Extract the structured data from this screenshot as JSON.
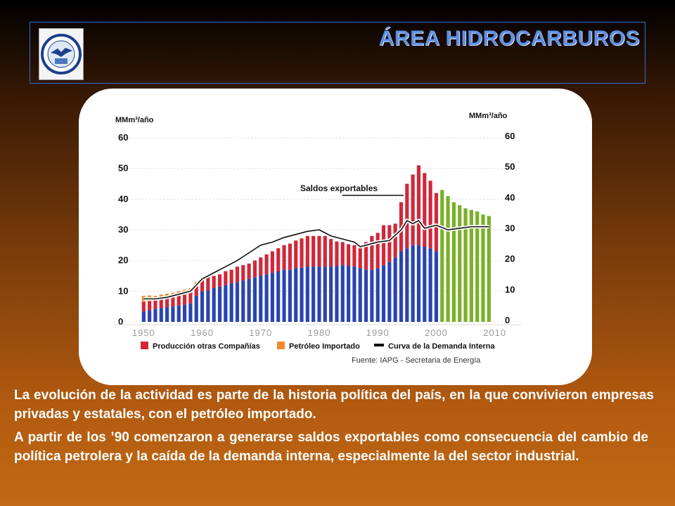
{
  "header": {
    "title": "ÁREA HIDROCARBUROS",
    "logo_text": "UNIVERSIDAD NACIONAL DE CUYO · MENDOZA ARGENTINA"
  },
  "chart_data": {
    "type": "bar",
    "ylabel_left": "MMm³/año",
    "ylabel_right": "MMm³/año",
    "yticks": [
      0,
      10,
      20,
      30,
      40,
      50,
      60
    ],
    "ylim": [
      0,
      60
    ],
    "xticks": [
      1950,
      1960,
      1970,
      1980,
      1990,
      2000,
      2010
    ],
    "xlim": [
      1949,
      2011
    ],
    "x": [
      1950,
      1951,
      1952,
      1953,
      1954,
      1955,
      1956,
      1957,
      1958,
      1959,
      1960,
      1961,
      1962,
      1963,
      1964,
      1965,
      1966,
      1967,
      1968,
      1969,
      1970,
      1971,
      1972,
      1973,
      1974,
      1975,
      1976,
      1977,
      1978,
      1979,
      1980,
      1981,
      1982,
      1983,
      1984,
      1985,
      1986,
      1987,
      1988,
      1989,
      1990,
      1991,
      1992,
      1993,
      1994,
      1995,
      1996,
      1997,
      1998,
      1999,
      2000,
      2001,
      2002,
      2003,
      2004,
      2005,
      2006,
      2007,
      2008,
      2009
    ],
    "series": [
      {
        "name": "",
        "values": [
          3.5,
          3.8,
          4.2,
          4.5,
          4.7,
          5.0,
          5.3,
          5.6,
          6.0,
          8.5,
          10.0,
          10.2,
          11.0,
          11.5,
          12.0,
          12.5,
          13.0,
          13.5,
          14.0,
          14.5,
          15.0,
          15.5,
          16.0,
          16.5,
          17.0,
          17.0,
          17.5,
          17.7,
          18.0,
          18.0,
          18.0,
          18.0,
          18.0,
          18.2,
          18.5,
          18.3,
          18.0,
          17.5,
          17.0,
          17.0,
          17.5,
          18.5,
          19.5,
          21.0,
          23.0,
          24.0,
          25.0,
          25.0,
          24.5,
          24.0,
          23.0,
          0,
          0,
          0,
          0,
          0,
          0,
          0,
          0,
          0
        ]
      },
      {
        "name": "Producción otras Compañías",
        "values": [
          3.0,
          3.0,
          2.8,
          2.9,
          3.0,
          3.0,
          3.2,
          3.3,
          3.5,
          3.5,
          4.0,
          4.5,
          4.0,
          4.0,
          4.5,
          4.5,
          5.0,
          5.0,
          5.0,
          5.5,
          6.0,
          6.5,
          7.0,
          7.5,
          8.0,
          8.5,
          9.0,
          9.5,
          10.0,
          10.0,
          10.0,
          10.0,
          9.0,
          8.0,
          7.5,
          7.0,
          7.0,
          7.5,
          9.0,
          11.0,
          11.5,
          13.0,
          12.0,
          11.0,
          16.0,
          21.0,
          23.0,
          26.0,
          24.0,
          22.0,
          19.0,
          0,
          0,
          0,
          0,
          0,
          0,
          0,
          0,
          0
        ]
      },
      {
        "name": "Petróleo Importado",
        "values": [
          2.0,
          1.8,
          1.5,
          1.5,
          1.5,
          1.5,
          1.5,
          1.5,
          1.5,
          1.0,
          0.5,
          0,
          0,
          0,
          0,
          0,
          0,
          0,
          0,
          0,
          0,
          0,
          0,
          0,
          0,
          0,
          0,
          0,
          0,
          0,
          0,
          0,
          0,
          0,
          0,
          0,
          0,
          0,
          0,
          0,
          0,
          0,
          0,
          0,
          0,
          0,
          0,
          0,
          0,
          0,
          0,
          0,
          0,
          0,
          0,
          0,
          0,
          0,
          0,
          0
        ]
      },
      {
        "name": "",
        "values": [
          0,
          0,
          0,
          0,
          0,
          0,
          0,
          0,
          0,
          0,
          0,
          0,
          0,
          0,
          0,
          0,
          0,
          0,
          0,
          0,
          0,
          0,
          0,
          0,
          0,
          0,
          0,
          0,
          0,
          0,
          0,
          0,
          0,
          0,
          0,
          0,
          0,
          0,
          0,
          0,
          0,
          0,
          0,
          0,
          0,
          0,
          0,
          0,
          0,
          0,
          0,
          43.0,
          41.0,
          39.0,
          38.0,
          37.0,
          36.5,
          36.0,
          35.0,
          34.5
        ]
      }
    ],
    "demand_line": {
      "name": "Curva de la Demanda Interna",
      "x": [
        1950,
        1952,
        1954,
        1956,
        1958,
        1960,
        1962,
        1964,
        1966,
        1968,
        1970,
        1972,
        1974,
        1976,
        1978,
        1980,
        1982,
        1984,
        1986,
        1987,
        1988,
        1990,
        1992,
        1994,
        1995,
        1996,
        1997,
        1998,
        2000,
        2002,
        2004,
        2006,
        2008,
        2009
      ],
      "y": [
        7.5,
        7.5,
        8.0,
        9.0,
        10.0,
        14.0,
        16.0,
        18.0,
        20.0,
        22.5,
        25.0,
        26.0,
        27.5,
        28.5,
        29.5,
        30.0,
        28.0,
        27.0,
        26.0,
        24.5,
        25.0,
        26.0,
        26.5,
        30.0,
        33.0,
        32.0,
        33.0,
        30.5,
        31.5,
        30.0,
        30.5,
        31.0,
        31.0,
        31.0
      ]
    },
    "annotation": "Saldos exportables",
    "legend": [
      {
        "label": "Producción otras Compañías",
        "color": "#d0283a"
      },
      {
        "label": "Petróleo Importado",
        "color": "#f08a28"
      },
      {
        "label": "Curva de la Demanda Interna",
        "color": "#111111"
      }
    ],
    "source": "Fuente: IAPG - Secretaria de Energía",
    "colors": {
      "ypf": "#2a45b0",
      "others": "#d0283a",
      "imported": "#f08a28",
      "projection": "#7ab028"
    }
  },
  "paragraphs": [
    "La evolución de la actividad  es parte de la historia política del país, en la que convivieron empresas privadas y estatales, con el petróleo importado.",
    "A partir de los ’90 comenzaron a generarse saldos exportables como consecuencia del cambio de política petrolera y la caída de la demanda interna, especialmente la del sector industrial."
  ]
}
